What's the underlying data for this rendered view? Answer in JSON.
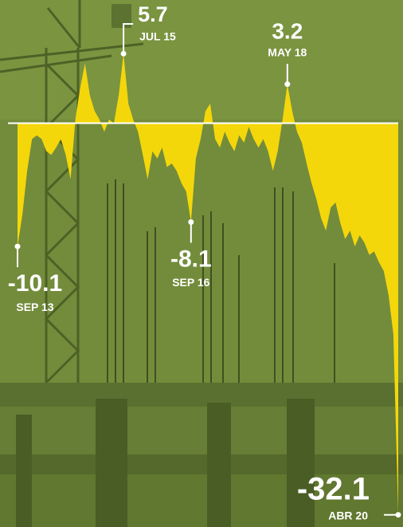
{
  "chart_data": {
    "type": "area",
    "categories": [
      "SEP 13",
      null,
      null,
      null,
      null,
      null,
      null,
      null,
      null,
      null,
      null,
      null,
      null,
      null,
      null,
      null,
      null,
      null,
      null,
      null,
      null,
      null,
      "JUL 15",
      null,
      null,
      null,
      null,
      null,
      null,
      null,
      null,
      null,
      null,
      null,
      null,
      null,
      "SEP 16",
      null,
      null,
      null,
      null,
      null,
      null,
      null,
      null,
      null,
      null,
      null,
      null,
      null,
      null,
      null,
      null,
      null,
      null,
      null,
      "MAY 18",
      null,
      null,
      null,
      null,
      null,
      null,
      null,
      null,
      null,
      null,
      null,
      null,
      null,
      null,
      null,
      null,
      null,
      null,
      null,
      null,
      null,
      null,
      "ABR 20"
    ],
    "values": [
      -10.1,
      -7.5,
      -3.9,
      -1.3,
      -1.0,
      -1.3,
      -2.3,
      -2.6,
      -2.0,
      -1.3,
      -2.6,
      -4.6,
      0.3,
      2.9,
      4.9,
      2.3,
      1.0,
      0.3,
      -0.7,
      0.3,
      0.0,
      2.3,
      5.7,
      1.6,
      0.3,
      -0.7,
      -2.6,
      -4.6,
      -2.3,
      -2.9,
      -2.0,
      -3.6,
      -3.3,
      -3.9,
      -4.9,
      -5.6,
      -8.1,
      -2.9,
      -1.3,
      1.0,
      1.6,
      -1.3,
      -2.0,
      -0.7,
      -1.6,
      -2.3,
      -1.0,
      -1.6,
      -0.3,
      -1.3,
      -2.0,
      -1.3,
      -2.3,
      -3.9,
      -2.3,
      0.3,
      3.2,
      1.0,
      -0.7,
      -1.6,
      -3.3,
      -4.9,
      -6.2,
      -7.8,
      -8.8,
      -6.9,
      -6.5,
      -8.2,
      -9.5,
      -8.8,
      -10.1,
      -9.2,
      -9.8,
      -10.8,
      -10.5,
      -11.4,
      -12.1,
      -14.1,
      -17.3,
      -32.1
    ],
    "color": "#f4d70b",
    "ylim": [
      -33.1,
      10.1
    ]
  }
}
